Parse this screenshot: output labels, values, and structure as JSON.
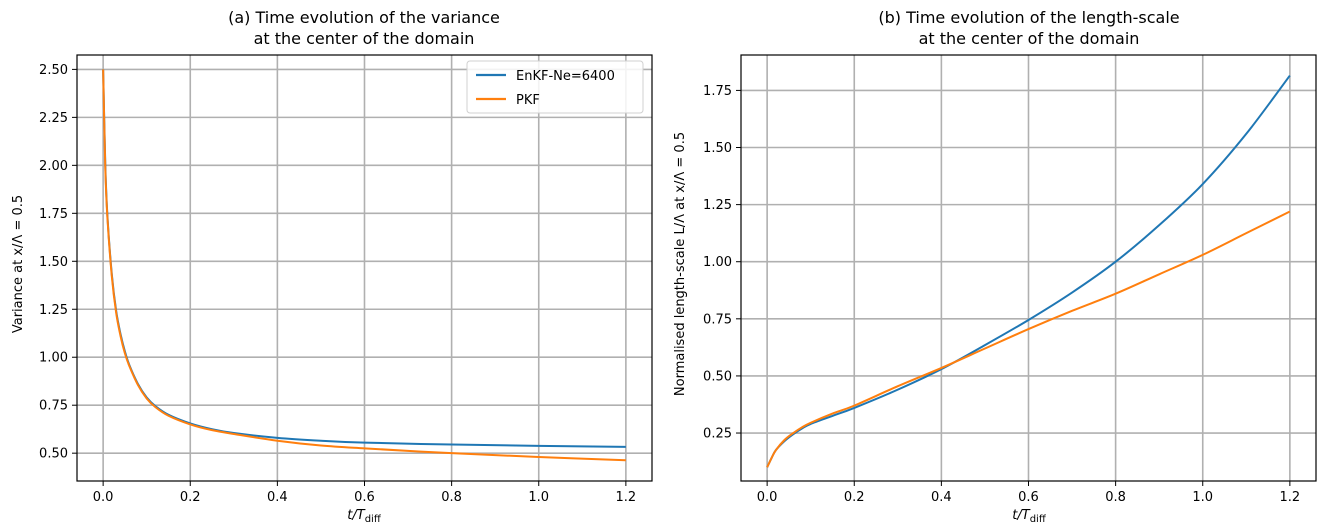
{
  "chart_data": [
    {
      "type": "line",
      "title_line1": "(a) Time evolution of the variance",
      "title_line2": "at the center of the domain",
      "xlabel_main": "t/T",
      "xlabel_sub": "diff",
      "ylabel": "Variance at x/Λ = 0.5",
      "xlim": [
        -0.06,
        1.26
      ],
      "ylim": [
        0.355,
        2.575
      ],
      "xticks": [
        0.0,
        0.2,
        0.4,
        0.6,
        0.8,
        1.0,
        1.2
      ],
      "xtick_labels": [
        "0.0",
        "0.2",
        "0.4",
        "0.6",
        "0.8",
        "1.0",
        "1.2"
      ],
      "yticks": [
        0.5,
        0.75,
        1.0,
        1.25,
        1.5,
        1.75,
        2.0,
        2.25,
        2.5
      ],
      "ytick_labels": [
        "0.50",
        "0.75",
        "1.00",
        "1.25",
        "1.50",
        "1.75",
        "2.00",
        "2.25",
        "2.50"
      ],
      "grid": true,
      "legend_position": "upper right",
      "series": [
        {
          "name": "EnKF-Ne=6400",
          "color": "#1f77b4",
          "x": [
            0.0,
            0.005,
            0.01,
            0.02,
            0.03,
            0.04,
            0.05,
            0.06,
            0.08,
            0.1,
            0.12,
            0.15,
            0.2,
            0.25,
            0.3,
            0.4,
            0.5,
            0.6,
            0.8,
            1.0,
            1.2
          ],
          "y": [
            2.5,
            2.0,
            1.73,
            1.43,
            1.24,
            1.12,
            1.03,
            0.96,
            0.86,
            0.79,
            0.745,
            0.7,
            0.655,
            0.625,
            0.605,
            0.58,
            0.565,
            0.555,
            0.545,
            0.538,
            0.533
          ]
        },
        {
          "name": "PKF",
          "color": "#ff7f0e",
          "x": [
            0.0,
            0.005,
            0.01,
            0.02,
            0.03,
            0.04,
            0.05,
            0.06,
            0.08,
            0.1,
            0.12,
            0.15,
            0.2,
            0.25,
            0.3,
            0.4,
            0.5,
            0.6,
            0.8,
            1.0,
            1.2
          ],
          "y": [
            2.5,
            1.98,
            1.72,
            1.42,
            1.23,
            1.11,
            1.02,
            0.955,
            0.855,
            0.785,
            0.74,
            0.695,
            0.65,
            0.62,
            0.6,
            0.565,
            0.54,
            0.525,
            0.5,
            0.48,
            0.463
          ]
        }
      ]
    },
    {
      "type": "line",
      "title_line1": "(b) Time evolution of the length-scale",
      "title_line2": "at the center of the domain",
      "xlabel_main": "t/T",
      "xlabel_sub": "diff",
      "ylabel": "Normalised length-scale L/Λ at x/Λ = 0.5",
      "xlim": [
        -0.06,
        1.26
      ],
      "ylim": [
        0.04,
        1.905
      ],
      "xticks": [
        0.0,
        0.2,
        0.4,
        0.6,
        0.8,
        1.0,
        1.2
      ],
      "xtick_labels": [
        "0.0",
        "0.2",
        "0.4",
        "0.6",
        "0.8",
        "1.0",
        "1.2"
      ],
      "yticks": [
        0.25,
        0.5,
        0.75,
        1.0,
        1.25,
        1.5,
        1.75
      ],
      "ytick_labels": [
        "0.25",
        "0.50",
        "0.75",
        "1.00",
        "1.25",
        "1.50",
        "1.75"
      ],
      "grid": true,
      "series": [
        {
          "name": "EnKF-Ne=6400",
          "color": "#1f77b4",
          "x": [
            0.0,
            0.01,
            0.02,
            0.04,
            0.06,
            0.08,
            0.1,
            0.15,
            0.2,
            0.3,
            0.4,
            0.5,
            0.6,
            0.7,
            0.8,
            0.9,
            1.0,
            1.1,
            1.2
          ],
          "y": [
            0.1,
            0.14,
            0.175,
            0.215,
            0.245,
            0.27,
            0.29,
            0.325,
            0.36,
            0.44,
            0.53,
            0.635,
            0.745,
            0.865,
            1.0,
            1.16,
            1.34,
            1.56,
            1.815
          ]
        },
        {
          "name": "PKF",
          "color": "#ff7f0e",
          "x": [
            0.0,
            0.01,
            0.02,
            0.04,
            0.06,
            0.08,
            0.1,
            0.15,
            0.2,
            0.3,
            0.4,
            0.5,
            0.6,
            0.7,
            0.8,
            0.9,
            1.0,
            1.1,
            1.2
          ],
          "y": [
            0.1,
            0.14,
            0.175,
            0.22,
            0.25,
            0.275,
            0.295,
            0.335,
            0.37,
            0.455,
            0.535,
            0.62,
            0.705,
            0.785,
            0.86,
            0.945,
            1.03,
            1.125,
            1.22
          ]
        }
      ]
    }
  ]
}
